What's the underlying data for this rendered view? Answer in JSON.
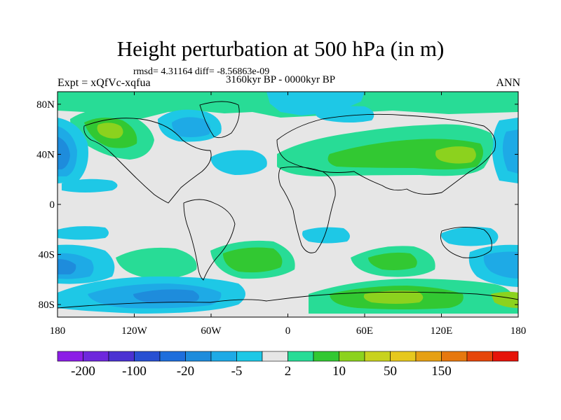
{
  "header": {
    "title": "Height perturbation at 500 hPa (in m)",
    "stats": "rmsd= 4.31164 diff= -8.56863e-09",
    "period": "3160kyr BP - 0000kyr BP",
    "experiment": "Expt = xQfVc-xqfua",
    "season": "ANN"
  },
  "map": {
    "lon_ticks": [
      "180",
      "120W",
      "60W",
      "0",
      "60E",
      "120E",
      "180"
    ],
    "lat_ticks": [
      "80N",
      "40N",
      "0",
      "40S",
      "80S"
    ],
    "background_color": "#e6e6e6"
  },
  "colorbar": {
    "colors": [
      "#8c1ee6",
      "#6e28dc",
      "#4b32d2",
      "#2850d2",
      "#1e6edc",
      "#1e8cdc",
      "#1eaae6",
      "#1ec8e6",
      "#e6e6e6",
      "#28dc96",
      "#32c832",
      "#8cd21e",
      "#c8d21e",
      "#e6c81e",
      "#e6a014",
      "#e6780f",
      "#e6460a",
      "#e6140a"
    ],
    "labels": [
      "-200",
      "-100",
      "-20",
      "-5",
      "2",
      "10",
      "50",
      "150"
    ]
  }
}
